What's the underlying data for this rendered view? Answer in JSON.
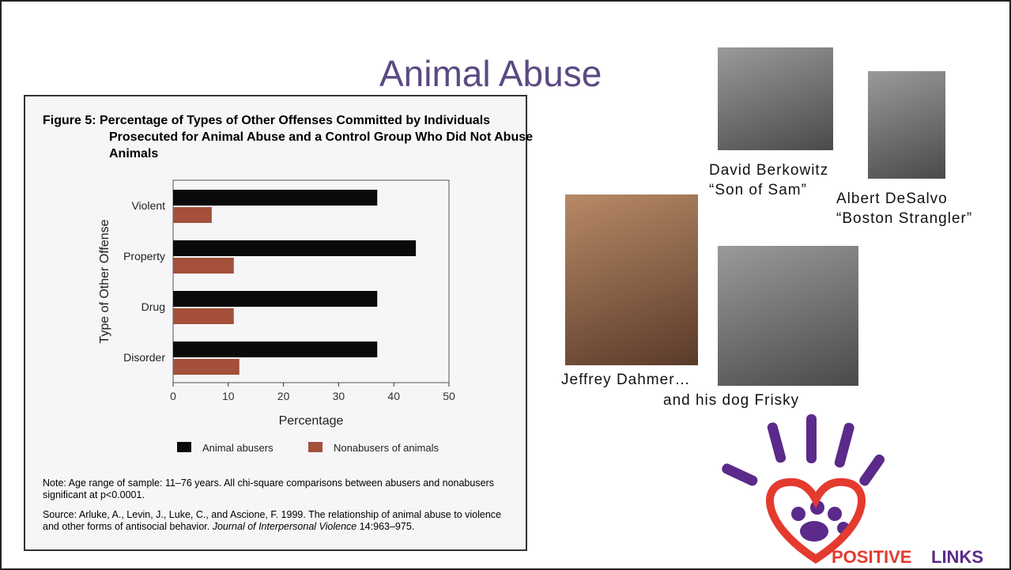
{
  "slide_title": "Animal Abuse",
  "chart_data": {
    "type": "barh",
    "title": "Figure 5: Percentage of Types of Other Offenses Committed by Individuals Prosecuted for Animal Abuse and a Control Group Who Did Not Abuse Animals",
    "xlabel": "Percentage",
    "ylabel": "Type of Other Offense",
    "categories": [
      "Violent",
      "Property",
      "Drug",
      "Disorder"
    ],
    "series": [
      {
        "name": "Animal abusers",
        "color": "#0a0a0a",
        "values": [
          37,
          44,
          37,
          37
        ]
      },
      {
        "name": "Nonabusers of animals",
        "color": "#a4503a",
        "values": [
          7,
          11,
          11,
          12
        ]
      }
    ],
    "xlim": [
      0,
      50
    ],
    "xticks": [
      0,
      10,
      20,
      30,
      40,
      50
    ],
    "note": "Note: Age range of sample: 11–76 years. All chi-square comparisons between abusers and nonabusers significant at p<0.0001.",
    "source": "Source: Arluke, A., Levin, J., Luke, C., and Ascione, F. 1999. The relationship of animal abuse to violence and other forms of antisocial behavior.",
    "journal": "Journal of Interpersonal Violence",
    "citation": "14:963–975."
  },
  "captions": {
    "berkowitz": [
      "David Berkowitz",
      "“Son of Sam”"
    ],
    "desalvo": [
      "Albert DeSalvo",
      "“Boston Strangler”"
    ],
    "dahmer": "Jeffrey Dahmer…",
    "frisky": "and his dog Frisky"
  },
  "logo": [
    "POSITIVE",
    "LINKS"
  ]
}
